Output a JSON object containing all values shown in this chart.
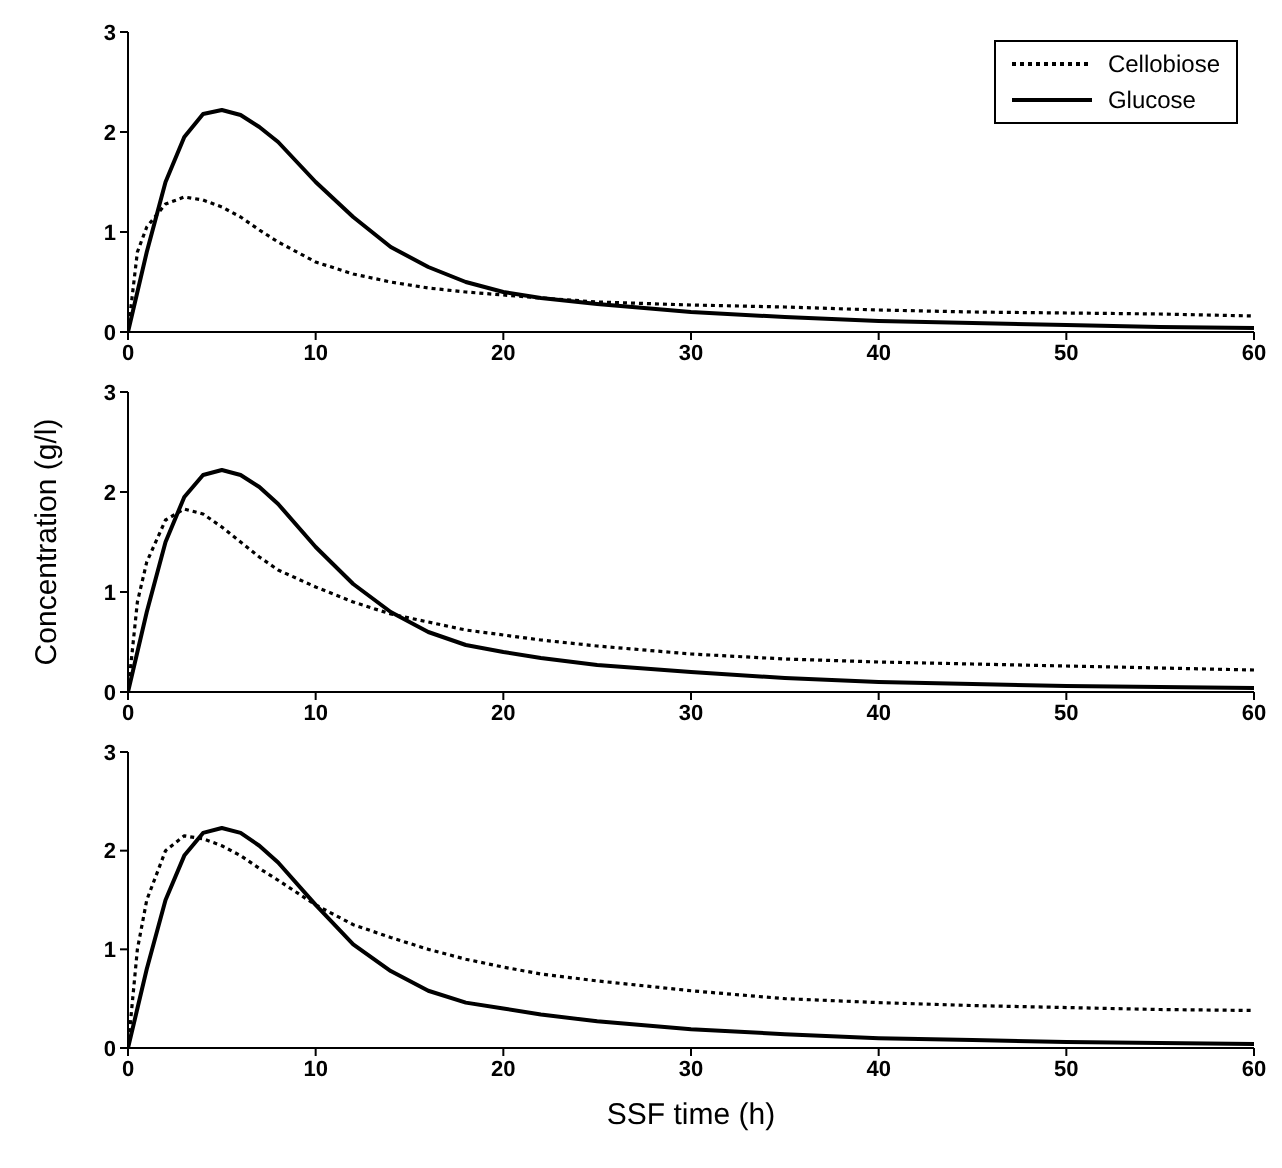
{
  "chart_data": [
    {
      "type": "line",
      "x": [
        0,
        0.5,
        1,
        2,
        3,
        4,
        5,
        6,
        7,
        8,
        10,
        12,
        14,
        16,
        18,
        20,
        22,
        25,
        30,
        35,
        40,
        45,
        50,
        55,
        60
      ],
      "xlim": [
        0,
        60
      ],
      "xticks": [
        0,
        10,
        20,
        30,
        40,
        50,
        60
      ],
      "ylim": [
        0,
        3
      ],
      "yticks": [
        0,
        1,
        2,
        3
      ],
      "legend": "top right",
      "grid": false,
      "marker": "none",
      "series": [
        {
          "name": "Cellobiose",
          "color": "#000000",
          "line_style": "dotted",
          "values": [
            0,
            0.8,
            1.05,
            1.28,
            1.35,
            1.32,
            1.25,
            1.15,
            1.02,
            0.9,
            0.7,
            0.58,
            0.5,
            0.44,
            0.4,
            0.37,
            0.34,
            0.3,
            0.27,
            0.25,
            0.22,
            0.2,
            0.19,
            0.18,
            0.16
          ]
        },
        {
          "name": "Glucose",
          "color": "#000000",
          "line_style": "solid",
          "values": [
            0,
            0.4,
            0.8,
            1.5,
            1.95,
            2.18,
            2.22,
            2.17,
            2.05,
            1.9,
            1.5,
            1.15,
            0.85,
            0.65,
            0.5,
            0.4,
            0.34,
            0.28,
            0.2,
            0.15,
            0.11,
            0.09,
            0.07,
            0.05,
            0.04
          ]
        }
      ]
    },
    {
      "type": "line",
      "ylabel": "Concentration (g/l)",
      "x": [
        0,
        0.5,
        1,
        2,
        3,
        4,
        5,
        6,
        7,
        8,
        10,
        12,
        14,
        16,
        18,
        20,
        22,
        25,
        30,
        35,
        40,
        45,
        50,
        55,
        60
      ],
      "xlim": [
        0,
        60
      ],
      "xticks": [
        0,
        10,
        20,
        30,
        40,
        50,
        60
      ],
      "ylim": [
        0,
        3
      ],
      "yticks": [
        0,
        1,
        2,
        3
      ],
      "grid": false,
      "marker": "none",
      "series": [
        {
          "color": "#000000",
          "line_style": "dotted",
          "values": [
            0,
            0.9,
            1.3,
            1.72,
            1.83,
            1.78,
            1.65,
            1.5,
            1.35,
            1.22,
            1.05,
            0.9,
            0.78,
            0.7,
            0.62,
            0.57,
            0.52,
            0.46,
            0.38,
            0.33,
            0.3,
            0.28,
            0.26,
            0.24,
            0.22
          ]
        },
        {
          "color": "#000000",
          "line_style": "solid",
          "values": [
            0,
            0.4,
            0.8,
            1.5,
            1.95,
            2.17,
            2.22,
            2.17,
            2.05,
            1.88,
            1.45,
            1.08,
            0.8,
            0.6,
            0.47,
            0.4,
            0.34,
            0.27,
            0.2,
            0.14,
            0.1,
            0.08,
            0.06,
            0.05,
            0.04
          ]
        }
      ]
    },
    {
      "type": "line",
      "xlabel": "SSF time (h)",
      "x": [
        0,
        0.5,
        1,
        2,
        3,
        4,
        5,
        6,
        7,
        8,
        10,
        12,
        14,
        16,
        18,
        20,
        22,
        25,
        30,
        35,
        40,
        45,
        50,
        55,
        60
      ],
      "xlim": [
        0,
        60
      ],
      "xticks": [
        0,
        10,
        20,
        30,
        40,
        50,
        60
      ],
      "ylim": [
        0,
        3
      ],
      "yticks": [
        0,
        1,
        2,
        3
      ],
      "grid": false,
      "marker": "none",
      "series": [
        {
          "color": "#000000",
          "line_style": "dotted",
          "values": [
            0,
            1.0,
            1.5,
            2.0,
            2.15,
            2.12,
            2.05,
            1.95,
            1.82,
            1.7,
            1.45,
            1.25,
            1.12,
            1.0,
            0.9,
            0.82,
            0.75,
            0.68,
            0.58,
            0.5,
            0.46,
            0.43,
            0.41,
            0.39,
            0.38
          ]
        },
        {
          "color": "#000000",
          "line_style": "solid",
          "values": [
            0,
            0.4,
            0.8,
            1.5,
            1.95,
            2.18,
            2.23,
            2.18,
            2.05,
            1.88,
            1.45,
            1.05,
            0.78,
            0.58,
            0.46,
            0.4,
            0.34,
            0.27,
            0.19,
            0.14,
            0.1,
            0.08,
            0.06,
            0.05,
            0.04
          ]
        }
      ]
    }
  ]
}
